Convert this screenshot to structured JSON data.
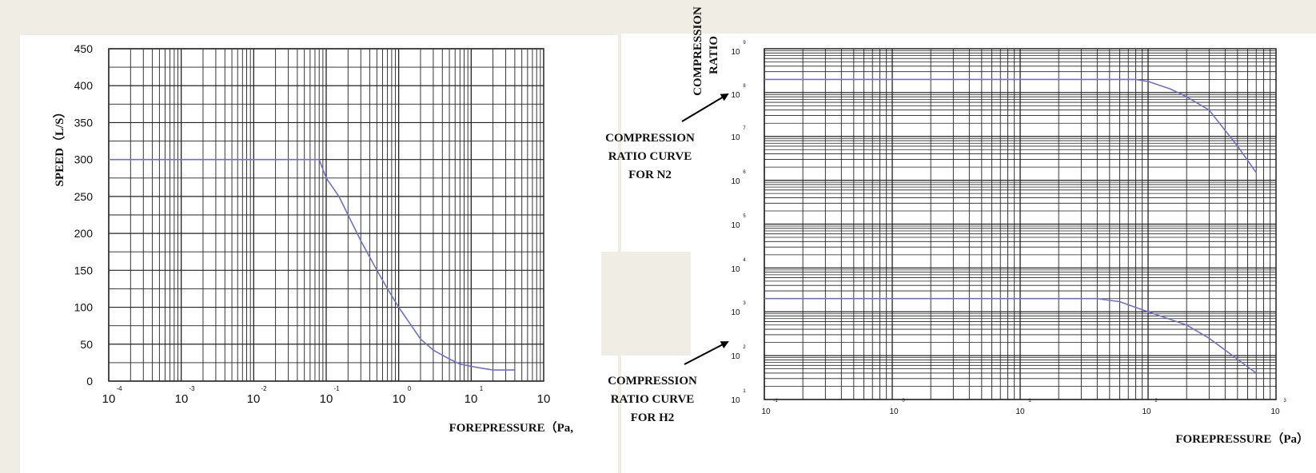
{
  "colors": {
    "background": "#efede4",
    "panel": "#ffffff",
    "curve": "#6f6fcf",
    "grid": "#222222",
    "text": "#111111"
  },
  "chart_data": [
    {
      "type": "line",
      "title": "",
      "xlabel": "FOREPRESSURE（Pa,",
      "ylabel": "SPEED（L/S）",
      "x_scale": "log",
      "xlim": [
        0.0001,
        100
      ],
      "ylim": [
        0,
        450
      ],
      "x_ticks": [
        {
          "base": "10",
          "exp": "-4"
        },
        {
          "base": "10",
          "exp": "-3"
        },
        {
          "base": "10",
          "exp": "-2"
        },
        {
          "base": "10",
          "exp": "-1"
        },
        {
          "base": "10",
          "exp": "0"
        },
        {
          "base": "10",
          "exp": "1"
        },
        {
          "base": "10",
          "exp": ""
        }
      ],
      "y_ticks": [
        "0",
        "50",
        "100",
        "150",
        "200",
        "250",
        "300",
        "350",
        "400",
        "450"
      ],
      "grid": true,
      "series": [
        {
          "x": [
            0.0001,
            0.08,
            0.1,
            0.15,
            0.2,
            0.3,
            0.5,
            0.7,
            1,
            1.5,
            2,
            3,
            5,
            7,
            10,
            15,
            20,
            30,
            40
          ],
          "y": [
            300,
            300,
            275,
            250,
            225,
            190,
            150,
            125,
            100,
            75,
            57,
            42,
            30,
            23,
            20,
            17,
            15,
            15,
            15
          ]
        }
      ]
    },
    {
      "type": "line",
      "title": "",
      "xlabel": "FOREPRESSURE（Pa）",
      "ylabel": "COMPRESSION RATIO",
      "x_scale": "log",
      "y_scale": "log",
      "xlim": [
        0.1,
        1000
      ],
      "ylim": [
        10,
        1000000000
      ],
      "x_ticks": [
        {
          "base": "10",
          "exp": "-1"
        },
        {
          "base": "10",
          "exp": "0"
        },
        {
          "base": "10",
          "exp": "1"
        },
        {
          "base": "10",
          "exp": "2"
        },
        {
          "base": "10",
          "exp": "3"
        }
      ],
      "y_ticks": [
        {
          "base": "10",
          "exp": "1"
        },
        {
          "base": "10",
          "exp": "2"
        },
        {
          "base": "10",
          "exp": "3"
        },
        {
          "base": "10",
          "exp": "4"
        },
        {
          "base": "10",
          "exp": "5"
        },
        {
          "base": "10",
          "exp": "6"
        },
        {
          "base": "10",
          "exp": "7"
        },
        {
          "base": "10",
          "exp": "8"
        },
        {
          "base": "10",
          "exp": "9"
        }
      ],
      "grid": true,
      "series": [
        {
          "name": "COMPRESSION RATIO CURVE FOR N2",
          "x": [
            0.1,
            80,
            100,
            150,
            200,
            300,
            500,
            700
          ],
          "y": [
            200000000,
            200000000,
            180000000,
            120000000,
            80000000,
            40000000,
            6000000,
            1500000
          ]
        },
        {
          "name": "COMPRESSION RATIO CURVE FOR H2",
          "x": [
            0.1,
            40,
            60,
            100,
            200,
            300,
            700
          ],
          "y": [
            2000,
            2000,
            1700,
            1000,
            500,
            250,
            40
          ]
        }
      ]
    }
  ],
  "annotations": {
    "n2_lines": [
      "COMPRESSION",
      "RATIO CURVE",
      "FOR N2"
    ],
    "h2_lines": [
      "COMPRESSION",
      "RATIO CURVE",
      "FOR H2"
    ]
  }
}
